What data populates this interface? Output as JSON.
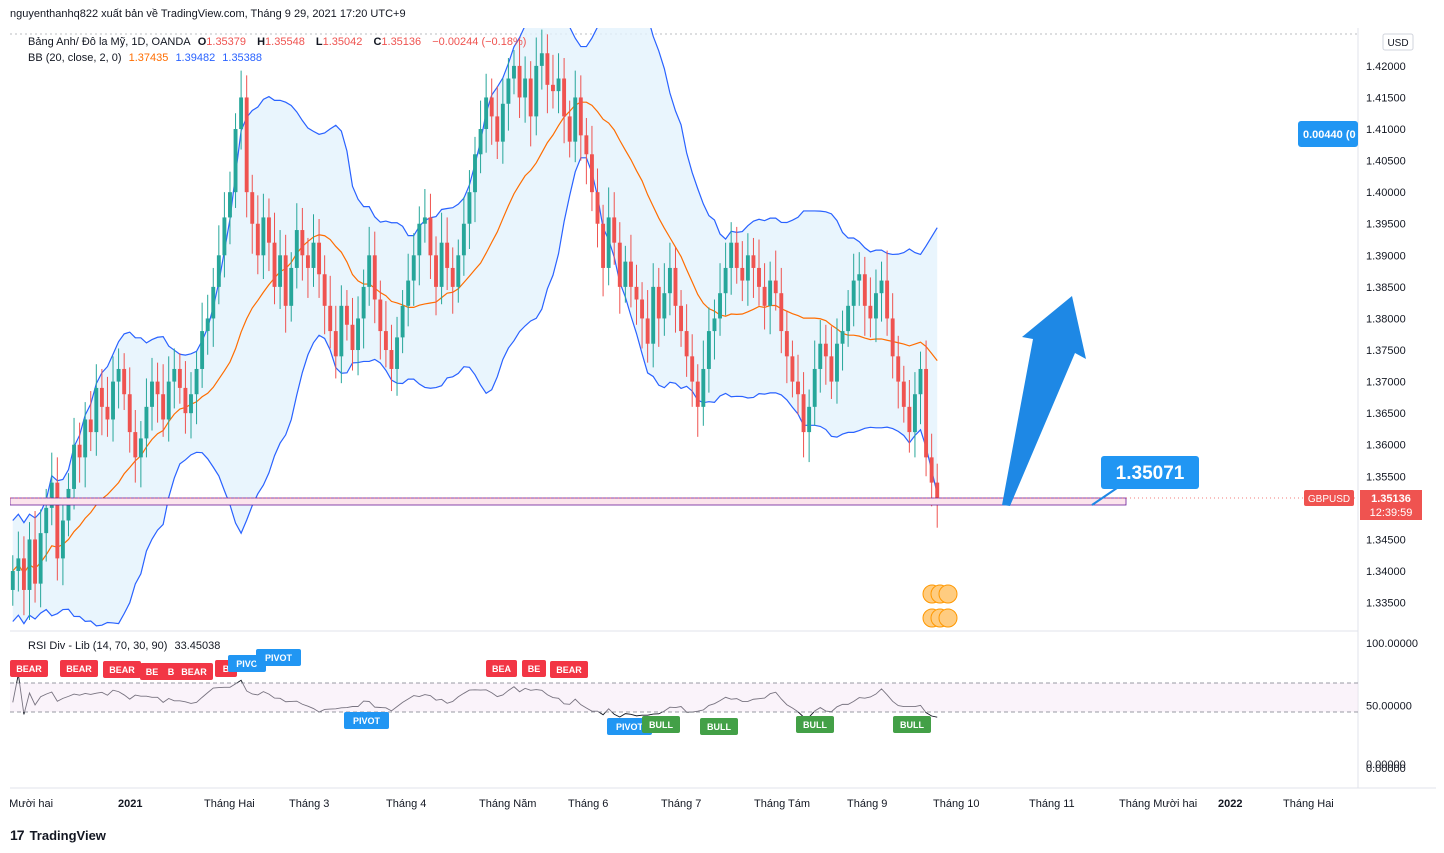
{
  "header": {
    "publisher_line": "nguyenthanhq822 xuất bản về TradingView.com, Tháng 9 29, 2021 17:20 UTC+9"
  },
  "legend": {
    "symbol": "Bảng Anh/ Đô la Mỹ, 1D, OANDA",
    "o_label": "O",
    "o_value": "1.35379",
    "h_label": "H",
    "h_value": "1.35548",
    "l_label": "L",
    "l_value": "1.35042",
    "c_label": "C",
    "c_value": "1.35136",
    "change": "−0.00244 (−0.18%)",
    "bb_label": "BB (20, close, 2, 0)",
    "bb_basis": "1.37435",
    "bb_upper": "1.39482",
    "bb_lower": "1.35388"
  },
  "rsi_legend": {
    "label": "RSI Div - Lib (14, 70, 30, 90)",
    "value": "33.45038"
  },
  "colors": {
    "up": "#26a69a",
    "down": "#ef5350",
    "bb_band": "#2962ff",
    "bb_basis": "#ff6d00",
    "bb_fill": "#e3f2fd",
    "arrow": "#1e88e5",
    "price_tag": "#ef5350",
    "bull": "#43a047",
    "bear": "#f23645",
    "pivot": "#2196f3"
  },
  "price_axis": {
    "currency": "USD",
    "ticks": [
      "1.42000",
      "1.41500",
      "1.41000",
      "1.40500",
      "1.40000",
      "1.39500",
      "1.39000",
      "1.38500",
      "1.38000",
      "1.37500",
      "1.37000",
      "1.36500",
      "1.36000",
      "1.35500",
      "1.34500",
      "1.34000",
      "1.33500"
    ],
    "symbol_tag": "GBPUSD",
    "last_price": "1.35136",
    "countdown": "12:39:59",
    "measure_tag": "0.00440 (0"
  },
  "rsi_axis": {
    "ticks": [
      "100.00000",
      "50.00000",
      "0.00000",
      "0.00000"
    ]
  },
  "time_axis": {
    "labels": [
      "g Mười hai",
      "2021",
      "Tháng Hai",
      "Tháng 3",
      "Tháng 4",
      "Tháng Năm",
      "Tháng 6",
      "Tháng 7",
      "Tháng Tám",
      "Tháng 9",
      "Tháng 10",
      "Tháng 11",
      "Tháng Mười hai",
      "2022",
      "Tháng Hai"
    ]
  },
  "annotation": {
    "callout": "1.35071"
  },
  "rsi_markers": [
    {
      "text": "BEAR",
      "kind": "bear"
    },
    {
      "text": "BEAR",
      "kind": "bear"
    },
    {
      "text": "BEAR",
      "kind": "bear"
    },
    {
      "text": "BE",
      "kind": "bear"
    },
    {
      "text": "B",
      "kind": "bear"
    },
    {
      "text": "BEAR",
      "kind": "bear"
    },
    {
      "text": "B",
      "kind": "bear"
    },
    {
      "text": "PIVO",
      "kind": "pivot"
    },
    {
      "text": "PIVOT",
      "kind": "pivot"
    },
    {
      "text": "PIVOT",
      "kind": "pivot"
    },
    {
      "text": "BEA",
      "kind": "bear"
    },
    {
      "text": "BE",
      "kind": "bear"
    },
    {
      "text": "BEAR",
      "kind": "bear"
    },
    {
      "text": "PIVOT",
      "kind": "pivot"
    },
    {
      "text": "BULL",
      "kind": "bull"
    },
    {
      "text": "BULL",
      "kind": "bull"
    },
    {
      "text": "BULL",
      "kind": "bull"
    },
    {
      "text": "BULL",
      "kind": "bull"
    }
  ],
  "footer": {
    "brand_mark": "17",
    "brand": "TradingView"
  },
  "chart_data": {
    "type": "candlestick",
    "symbol": "GBPUSD",
    "interval": "1D",
    "ylim": [
      1.3305,
      1.426
    ],
    "support_level": 1.35071,
    "last_close": 1.35136,
    "closes": [
      1.34,
      1.342,
      1.337,
      1.345,
      1.338,
      1.346,
      1.35,
      1.354,
      1.342,
      1.348,
      1.353,
      1.36,
      1.358,
      1.364,
      1.362,
      1.369,
      1.366,
      1.364,
      1.37,
      1.372,
      1.368,
      1.362,
      1.358,
      1.361,
      1.366,
      1.37,
      1.368,
      1.364,
      1.37,
      1.372,
      1.369,
      1.365,
      1.368,
      1.372,
      1.378,
      1.38,
      1.385,
      1.39,
      1.396,
      1.4,
      1.41,
      1.415,
      1.4,
      1.395,
      1.39,
      1.396,
      1.392,
      1.385,
      1.39,
      1.382,
      1.388,
      1.394,
      1.39,
      1.388,
      1.392,
      1.387,
      1.382,
      1.378,
      1.374,
      1.382,
      1.379,
      1.375,
      1.38,
      1.385,
      1.39,
      1.383,
      1.378,
      1.375,
      1.372,
      1.377,
      1.382,
      1.386,
      1.39,
      1.395,
      1.396,
      1.39,
      1.385,
      1.392,
      1.388,
      1.385,
      1.39,
      1.395,
      1.4,
      1.406,
      1.41,
      1.415,
      1.412,
      1.408,
      1.414,
      1.418,
      1.42,
      1.415,
      1.418,
      1.412,
      1.42,
      1.422,
      1.417,
      1.416,
      1.418,
      1.412,
      1.408,
      1.415,
      1.409,
      1.406,
      1.4,
      1.395,
      1.388,
      1.396,
      1.392,
      1.385,
      1.389,
      1.385,
      1.383,
      1.38,
      1.376,
      1.385,
      1.38,
      1.384,
      1.388,
      1.382,
      1.378,
      1.374,
      1.37,
      1.366,
      1.372,
      1.378,
      1.38,
      1.384,
      1.388,
      1.392,
      1.388,
      1.386,
      1.39,
      1.388,
      1.385,
      1.382,
      1.386,
      1.384,
      1.378,
      1.374,
      1.37,
      1.368,
      1.362,
      1.366,
      1.372,
      1.376,
      1.374,
      1.37,
      1.376,
      1.378,
      1.382,
      1.386,
      1.387,
      1.382,
      1.38,
      1.384,
      1.386,
      1.38,
      1.374,
      1.37,
      1.366,
      1.362,
      1.368,
      1.372,
      1.358,
      1.354,
      1.35136
    ]
  }
}
